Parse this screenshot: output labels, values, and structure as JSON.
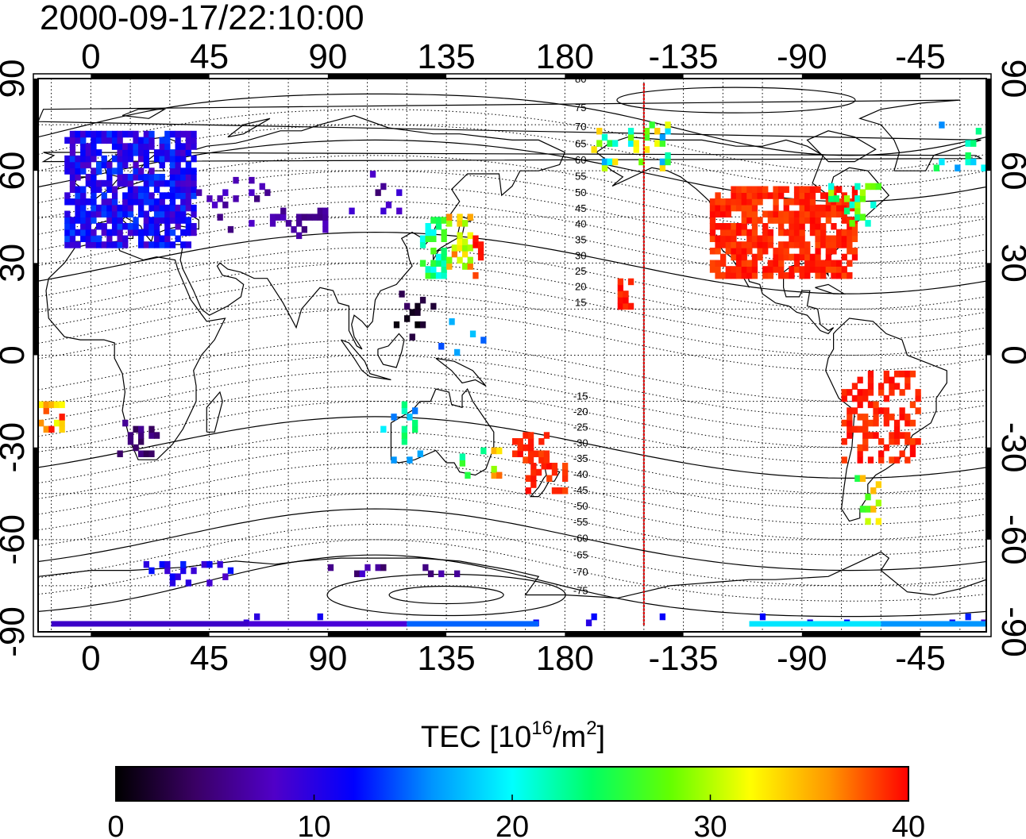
{
  "timestamp": "2000-09-17/22:10:00",
  "map": {
    "top_lon_ticks": [
      "0",
      "45",
      "90",
      "135",
      "180",
      "-135",
      "-90",
      "-45"
    ],
    "bottom_lon_ticks": [
      "0",
      "45",
      "90",
      "135",
      "180",
      "-135",
      "-90",
      "-45"
    ],
    "left_lat_ticks": [
      "90",
      "60",
      "30",
      "0",
      "-30",
      "-60",
      "-90"
    ],
    "right_lat_ticks": [
      "90",
      "60",
      "30",
      "0",
      "-30",
      "-60",
      "-90"
    ],
    "contour_labels": [
      "80",
      "75",
      "70",
      "65",
      "60",
      "55",
      "50",
      "45",
      "40",
      "35",
      "30",
      "25",
      "20",
      "15",
      "-15",
      "-20",
      "-25",
      "-30",
      "-35",
      "-40",
      "-45",
      "-50",
      "-55",
      "-60",
      "-65",
      "-70",
      "-75"
    ],
    "terminator_longitude": -150,
    "line_color": "#e00000"
  },
  "colorbar": {
    "title_prefix": "TEC  [10",
    "title_exp1": "16",
    "title_mid": "/m",
    "title_exp2": "2",
    "title_suffix": "]",
    "min": 0,
    "max": 40,
    "tick_labels": [
      "0",
      "10",
      "20",
      "30",
      "40"
    ],
    "colormap": [
      "#000000",
      "#3a0064",
      "#5000c8",
      "#0000ff",
      "#0096ff",
      "#00ffff",
      "#00ff64",
      "#64ff00",
      "#ffff00",
      "#ff9600",
      "#ff0000"
    ]
  }
}
